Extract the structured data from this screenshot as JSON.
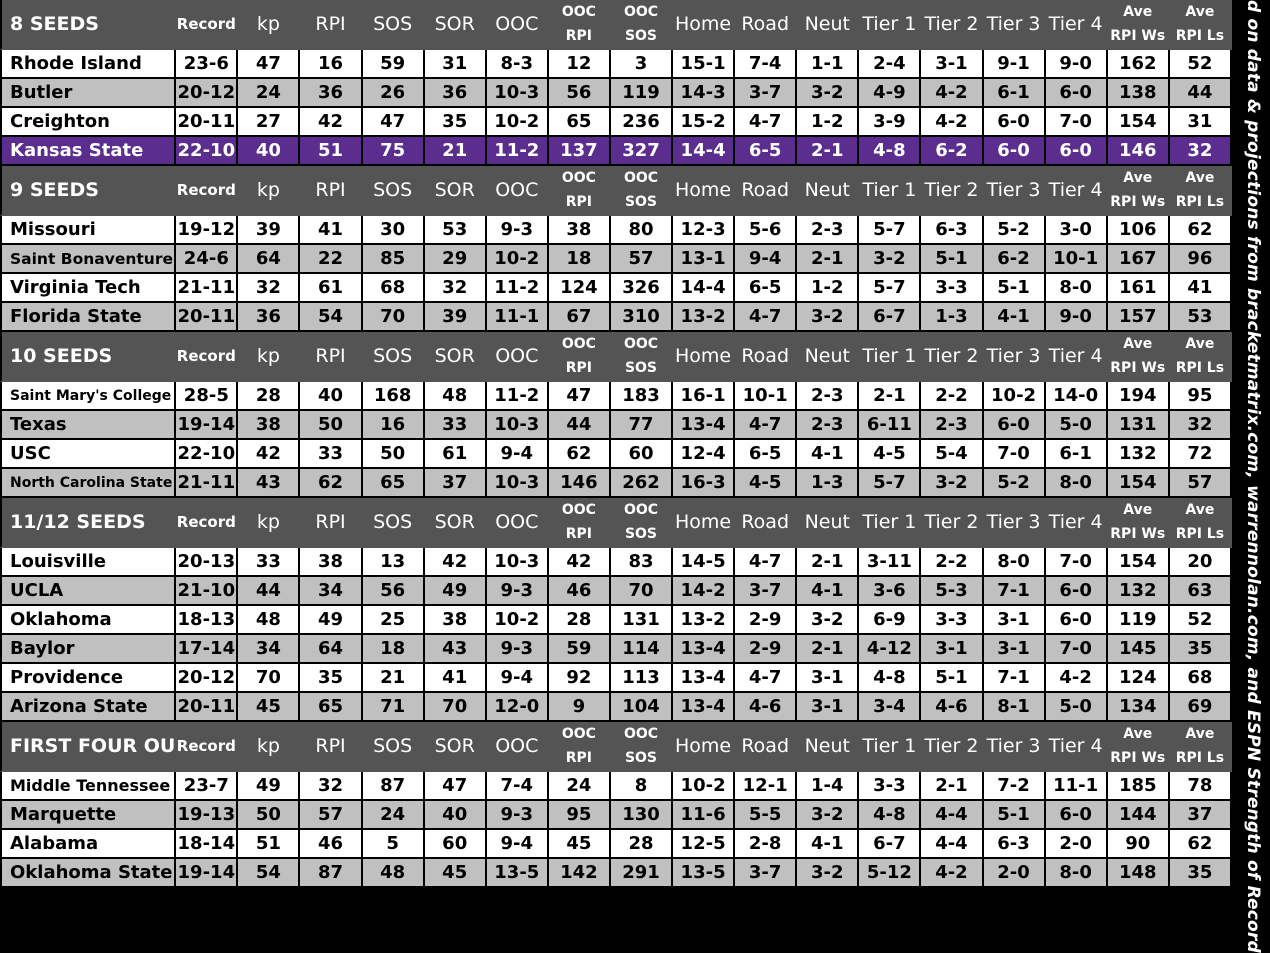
{
  "chart_data": {
    "type": "table",
    "source_note": "Based on data & projections from bracketmatrix.com, warrennolan.com, and ESPN Strength of Record",
    "columns": [
      {
        "key": "record",
        "line1": "Record",
        "line2": ""
      },
      {
        "key": "kp",
        "line1": "kp",
        "line2": ""
      },
      {
        "key": "rpi",
        "line1": "RPI",
        "line2": ""
      },
      {
        "key": "sos",
        "line1": "SOS",
        "line2": ""
      },
      {
        "key": "sor",
        "line1": "SOR",
        "line2": ""
      },
      {
        "key": "ooc",
        "line1": "OOC",
        "line2": ""
      },
      {
        "key": "ooc_rpi",
        "line1": "OOC",
        "line2": "RPI"
      },
      {
        "key": "ooc_sos",
        "line1": "OOC",
        "line2": "SOS"
      },
      {
        "key": "home",
        "line1": "Home",
        "line2": ""
      },
      {
        "key": "road",
        "line1": "Road",
        "line2": ""
      },
      {
        "key": "neut",
        "line1": "Neut",
        "line2": ""
      },
      {
        "key": "tier1",
        "line1": "Tier 1",
        "line2": ""
      },
      {
        "key": "tier2",
        "line1": "Tier 2",
        "line2": ""
      },
      {
        "key": "tier3",
        "line1": "Tier 3",
        "line2": ""
      },
      {
        "key": "tier4",
        "line1": "Tier 4",
        "line2": ""
      },
      {
        "key": "ave_rpi_ws",
        "line1": "Ave",
        "line2": "RPI Ws"
      },
      {
        "key": "ave_rpi_ls",
        "line1": "Ave",
        "line2": "RPI Ls"
      }
    ],
    "colors": {
      "header_bg": "#545454",
      "row_white": "#ffffff",
      "row_gray": "#c0c0c0",
      "highlight": "#5b2d8e",
      "border": "#000000"
    },
    "sections": [
      {
        "title": "8 SEEDS",
        "teams": [
          {
            "name": "Rhode Island",
            "values": [
              "23-6",
              "47",
              "16",
              "59",
              "31",
              "8-3",
              "12",
              "3",
              "15-1",
              "7-4",
              "1-1",
              "2-4",
              "3-1",
              "9-1",
              "9-0",
              "162",
              "52"
            ]
          },
          {
            "name": "Butler",
            "values": [
              "20-12",
              "24",
              "36",
              "26",
              "36",
              "10-3",
              "56",
              "119",
              "14-3",
              "3-7",
              "3-2",
              "4-9",
              "4-2",
              "6-1",
              "6-0",
              "138",
              "44"
            ]
          },
          {
            "name": "Creighton",
            "values": [
              "20-11",
              "27",
              "42",
              "47",
              "35",
              "10-2",
              "65",
              "236",
              "15-2",
              "4-7",
              "1-2",
              "3-9",
              "4-2",
              "6-0",
              "7-0",
              "154",
              "31"
            ]
          },
          {
            "name": "Kansas State",
            "highlight": true,
            "values": [
              "22-10",
              "40",
              "51",
              "75",
              "21",
              "11-2",
              "137",
              "327",
              "14-4",
              "6-5",
              "2-1",
              "4-8",
              "6-2",
              "6-0",
              "6-0",
              "146",
              "32"
            ]
          }
        ]
      },
      {
        "title": "9 SEEDS",
        "teams": [
          {
            "name": "Missouri",
            "values": [
              "19-12",
              "39",
              "41",
              "30",
              "53",
              "9-3",
              "38",
              "80",
              "12-3",
              "5-6",
              "2-3",
              "5-7",
              "6-3",
              "5-2",
              "3-0",
              "106",
              "62"
            ]
          },
          {
            "name": "Saint Bonaventure",
            "values": [
              "24-6",
              "64",
              "22",
              "85",
              "29",
              "10-2",
              "18",
              "57",
              "13-1",
              "9-4",
              "2-1",
              "3-2",
              "5-1",
              "6-2",
              "10-1",
              "167",
              "96"
            ]
          },
          {
            "name": "Virginia Tech",
            "values": [
              "21-11",
              "32",
              "61",
              "68",
              "32",
              "11-2",
              "124",
              "326",
              "14-4",
              "6-5",
              "1-2",
              "5-7",
              "3-3",
              "5-1",
              "8-0",
              "161",
              "41"
            ]
          },
          {
            "name": "Florida State",
            "values": [
              "20-11",
              "36",
              "54",
              "70",
              "39",
              "11-1",
              "67",
              "310",
              "13-2",
              "4-7",
              "3-2",
              "6-7",
              "1-3",
              "4-1",
              "9-0",
              "157",
              "53"
            ]
          }
        ]
      },
      {
        "title": "10 SEEDS",
        "teams": [
          {
            "name": "Saint Mary's College",
            "values": [
              "28-5",
              "28",
              "40",
              "168",
              "48",
              "11-2",
              "47",
              "183",
              "16-1",
              "10-1",
              "2-3",
              "2-1",
              "2-2",
              "10-2",
              "14-0",
              "194",
              "95"
            ]
          },
          {
            "name": "Texas",
            "values": [
              "19-14",
              "38",
              "50",
              "16",
              "33",
              "10-3",
              "44",
              "77",
              "13-4",
              "4-7",
              "2-3",
              "6-11",
              "2-3",
              "6-0",
              "5-0",
              "131",
              "32"
            ]
          },
          {
            "name": "USC",
            "values": [
              "22-10",
              "42",
              "33",
              "50",
              "61",
              "9-4",
              "62",
              "60",
              "12-4",
              "6-5",
              "4-1",
              "4-5",
              "5-4",
              "7-0",
              "6-1",
              "132",
              "72"
            ]
          },
          {
            "name": "North Carolina State",
            "values": [
              "21-11",
              "43",
              "62",
              "65",
              "37",
              "10-3",
              "146",
              "262",
              "16-3",
              "4-5",
              "1-3",
              "5-7",
              "3-2",
              "5-2",
              "8-0",
              "154",
              "57"
            ]
          }
        ]
      },
      {
        "title": "11/12 SEEDS",
        "teams": [
          {
            "name": "Louisville",
            "values": [
              "20-13",
              "33",
              "38",
              "13",
              "42",
              "10-3",
              "42",
              "83",
              "14-5",
              "4-7",
              "2-1",
              "3-11",
              "2-2",
              "8-0",
              "7-0",
              "154",
              "20"
            ]
          },
          {
            "name": "UCLA",
            "values": [
              "21-10",
              "44",
              "34",
              "56",
              "49",
              "9-3",
              "46",
              "70",
              "14-2",
              "3-7",
              "4-1",
              "3-6",
              "5-3",
              "7-1",
              "6-0",
              "132",
              "63"
            ]
          },
          {
            "name": "Oklahoma",
            "values": [
              "18-13",
              "48",
              "49",
              "25",
              "38",
              "10-2",
              "28",
              "131",
              "13-2",
              "2-9",
              "3-2",
              "6-9",
              "3-3",
              "3-1",
              "6-0",
              "119",
              "52"
            ]
          },
          {
            "name": "Baylor",
            "values": [
              "17-14",
              "34",
              "64",
              "18",
              "43",
              "9-3",
              "59",
              "114",
              "13-4",
              "2-9",
              "2-1",
              "4-12",
              "3-1",
              "3-1",
              "7-0",
              "145",
              "35"
            ]
          },
          {
            "name": "Providence",
            "values": [
              "20-12",
              "70",
              "35",
              "21",
              "41",
              "9-4",
              "92",
              "113",
              "13-4",
              "4-7",
              "3-1",
              "4-8",
              "5-1",
              "7-1",
              "4-2",
              "124",
              "68"
            ]
          },
          {
            "name": "Arizona State",
            "values": [
              "20-11",
              "45",
              "65",
              "71",
              "70",
              "12-0",
              "9",
              "104",
              "13-4",
              "4-6",
              "3-1",
              "3-4",
              "4-6",
              "8-1",
              "5-0",
              "134",
              "69"
            ]
          }
        ]
      },
      {
        "title": "FIRST FOUR OUT",
        "teams": [
          {
            "name": "Middle Tennessee",
            "values": [
              "23-7",
              "49",
              "32",
              "87",
              "47",
              "7-4",
              "24",
              "8",
              "10-2",
              "12-1",
              "1-4",
              "3-3",
              "2-1",
              "7-2",
              "11-1",
              "185",
              "78"
            ]
          },
          {
            "name": "Marquette",
            "values": [
              "19-13",
              "50",
              "57",
              "24",
              "40",
              "9-3",
              "95",
              "130",
              "11-6",
              "5-5",
              "3-2",
              "4-8",
              "4-4",
              "5-1",
              "6-0",
              "144",
              "37"
            ]
          },
          {
            "name": "Alabama",
            "values": [
              "18-14",
              "51",
              "46",
              "5",
              "60",
              "9-4",
              "45",
              "28",
              "12-5",
              "2-8",
              "4-1",
              "6-7",
              "4-4",
              "6-3",
              "2-0",
              "90",
              "62"
            ]
          },
          {
            "name": "Oklahoma State",
            "values": [
              "19-14",
              "54",
              "87",
              "48",
              "45",
              "13-5",
              "142",
              "291",
              "13-5",
              "3-7",
              "3-2",
              "5-12",
              "4-2",
              "2-0",
              "8-0",
              "148",
              "35"
            ]
          }
        ]
      }
    ]
  }
}
